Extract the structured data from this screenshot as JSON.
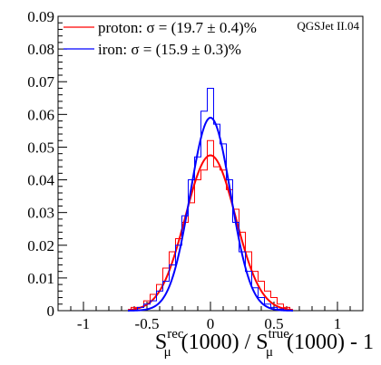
{
  "chart_data": {
    "type": "line",
    "annotation": "QGSJet II.04",
    "xlabel": {
      "main1": "S",
      "sup1": "rec",
      "sub1": "μ",
      "mid": "(1000) / S",
      "sup2": "true",
      "sub2": "μ",
      "tail": "(1000) - 1"
    },
    "xlim": [
      -1.2,
      1.2
    ],
    "ylim": [
      0,
      0.09
    ],
    "x_ticks": [
      -1,
      -0.5,
      0,
      0.5,
      1
    ],
    "x_tick_labels": [
      "-1",
      "-0.5",
      "0",
      "0.5",
      "1"
    ],
    "y_ticks": [
      0,
      0.01,
      0.02,
      0.03,
      0.04,
      0.05,
      0.06,
      0.07,
      0.08,
      0.09
    ],
    "y_tick_labels": [
      "0",
      "0.01",
      "0.02",
      "0.03",
      "0.04",
      "0.05",
      "0.06",
      "0.07",
      "0.08",
      "0.09"
    ],
    "legend_position": "top-left",
    "series": [
      {
        "name": "proton: σ = (19.7 ± 0.4)%",
        "color": "#ff0000",
        "fit": {
          "mean": 0.0,
          "sigma": 0.197,
          "peak": 0.0475
        },
        "hist_x": [
          -0.6,
          -0.55,
          -0.5,
          -0.45,
          -0.4,
          -0.35,
          -0.3,
          -0.25,
          -0.2,
          -0.15,
          -0.1,
          -0.05,
          0.0,
          0.05,
          0.1,
          0.15,
          0.2,
          0.25,
          0.3,
          0.35,
          0.4,
          0.45,
          0.5,
          0.55,
          0.6
        ],
        "hist_y": [
          0.001,
          0.001,
          0.003,
          0.005,
          0.008,
          0.013,
          0.018,
          0.022,
          0.027,
          0.033,
          0.04,
          0.043,
          0.052,
          0.044,
          0.043,
          0.037,
          0.031,
          0.024,
          0.018,
          0.012,
          0.009,
          0.006,
          0.004,
          0.002,
          0.001
        ]
      },
      {
        "name": "iron: σ = (15.9 ± 0.3)%",
        "color": "#0000ff",
        "fit": {
          "mean": 0.0,
          "sigma": 0.159,
          "peak": 0.059
        },
        "hist_x": [
          -0.6,
          -0.55,
          -0.5,
          -0.45,
          -0.4,
          -0.35,
          -0.3,
          -0.25,
          -0.2,
          -0.15,
          -0.1,
          -0.05,
          0.0,
          0.05,
          0.1,
          0.15,
          0.2,
          0.25,
          0.3,
          0.35,
          0.4,
          0.45,
          0.5,
          0.55,
          0.6
        ],
        "hist_y": [
          0.0,
          0.001,
          0.002,
          0.003,
          0.006,
          0.009,
          0.014,
          0.02,
          0.029,
          0.04,
          0.047,
          0.061,
          0.068,
          0.057,
          0.051,
          0.04,
          0.027,
          0.018,
          0.012,
          0.007,
          0.004,
          0.002,
          0.001,
          0.0005,
          0.0
        ]
      }
    ]
  }
}
